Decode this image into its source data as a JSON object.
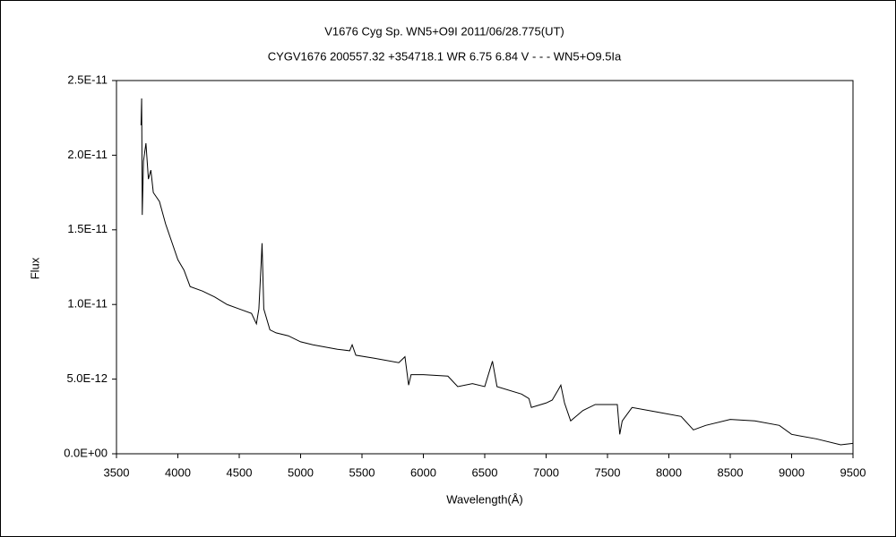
{
  "chart_data": {
    "type": "line",
    "title": "V1676 Cyg    Sp. WN5+O9I    2011/06/28.775(UT)",
    "subtitle": "CYGV1676 200557.32 +354718.1 WR 6.75 6.84 V - - - WN5+O9.5Ia",
    "x_label": "Wavelength(Å)",
    "y_label": "Flux",
    "xlim": [
      3500,
      9500
    ],
    "xticks": [
      3500,
      4000,
      4500,
      5000,
      5500,
      6000,
      6500,
      7000,
      7500,
      8000,
      8500,
      9000,
      9500
    ],
    "ylim": [
      0,
      2.5e-11
    ],
    "yticks": [
      {
        "value": 0,
        "label": "0.0E+00"
      },
      {
        "value": 5e-12,
        "label": "5.0E-12"
      },
      {
        "value": 1e-11,
        "label": "1.0E-11"
      },
      {
        "value": 1.5e-11,
        "label": "1.5E-11"
      },
      {
        "value": 2e-11,
        "label": "2.0E-11"
      },
      {
        "value": 2.5e-11,
        "label": "2.5E-11"
      }
    ],
    "grid": false,
    "series": [
      {
        "color": "#000000",
        "x": [
          3700,
          3705,
          3710,
          3720,
          3740,
          3760,
          3780,
          3800,
          3850,
          3900,
          3950,
          4000,
          4050,
          4100,
          4200,
          4300,
          4400,
          4500,
          4600,
          4640,
          4660,
          4680,
          4686,
          4700,
          4750,
          4800,
          4900,
          5000,
          5100,
          5300,
          5400,
          5420,
          5450,
          5600,
          5800,
          5850,
          5880,
          5900,
          6000,
          6200,
          6280,
          6400,
          6500,
          6563,
          6600,
          6800,
          6860,
          6880,
          7000,
          7050,
          7100,
          7120,
          7150,
          7200,
          7300,
          7400,
          7580,
          7600,
          7620,
          7700,
          7900,
          8100,
          8200,
          8300,
          8500,
          8700,
          8900,
          9000,
          9200,
          9400,
          9500
        ],
        "values": [
          2.2e-11,
          2.38e-11,
          1.6e-11,
          1.96e-11,
          2.08e-11,
          1.84e-11,
          1.9e-11,
          1.75e-11,
          1.69e-11,
          1.54e-11,
          1.42e-11,
          1.3e-11,
          1.23e-11,
          1.12e-11,
          1.09e-11,
          1.05e-11,
          1e-11,
          9.7e-12,
          9.4e-12,
          8.7e-12,
          9.7e-12,
          1.3e-11,
          1.41e-11,
          9.7e-12,
          8.3e-12,
          8.1e-12,
          7.9e-12,
          7.5e-12,
          7.3e-12,
          7e-12,
          6.9e-12,
          7.3e-12,
          6.6e-12,
          6.4e-12,
          6.1e-12,
          6.5e-12,
          4.6e-12,
          5.3e-12,
          5.3e-12,
          5.2e-12,
          4.5e-12,
          4.7e-12,
          4.5e-12,
          6.2e-12,
          4.5e-12,
          4e-12,
          3.7e-12,
          3.1e-12,
          3.4e-12,
          3.6e-12,
          4.3e-12,
          4.6e-12,
          3.4e-12,
          2.2e-12,
          2.9e-12,
          3.3e-12,
          3.3e-12,
          1.3e-12,
          2.2e-12,
          3.1e-12,
          2.8e-12,
          2.5e-12,
          1.6e-12,
          1.9e-12,
          2.3e-12,
          2.2e-12,
          1.9e-12,
          1.3e-12,
          1e-12,
          6e-13,
          7e-13
        ]
      }
    ]
  }
}
